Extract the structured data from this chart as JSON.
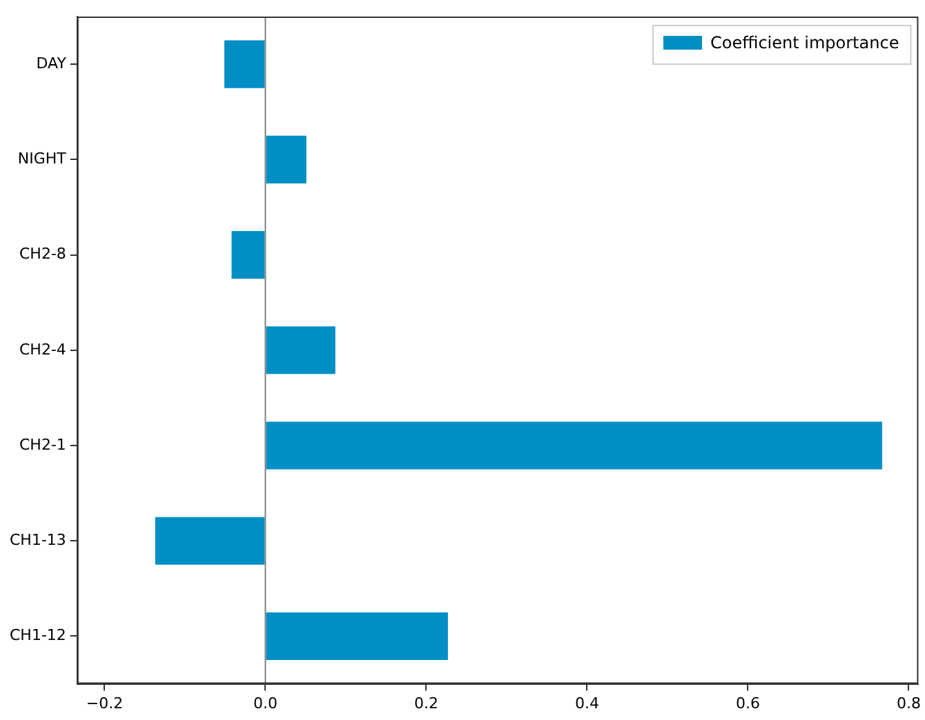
{
  "chart_data": {
    "type": "bar",
    "orientation": "horizontal",
    "categories": [
      "DAY",
      "NIGHT",
      "CH2-8",
      "CH2-4",
      "CH2-1",
      "CH1-13",
      "CH1-12"
    ],
    "series": [
      {
        "name": "Coefficient importance",
        "color": "#008fc5",
        "values": [
          -0.051,
          0.051,
          -0.042,
          0.087,
          0.767,
          -0.137,
          0.227
        ]
      }
    ],
    "xlim": [
      -0.234,
      0.812
    ],
    "xticks": [
      {
        "value": -0.2,
        "label": "−0.2"
      },
      {
        "value": 0,
        "label": "0.0"
      },
      {
        "value": 0.2,
        "label": "0.2"
      },
      {
        "value": 0.4,
        "label": "0.4"
      },
      {
        "value": 0.6,
        "label": "0.6"
      },
      {
        "value": 0.8,
        "label": "0.8"
      }
    ],
    "ref_lines": [
      {
        "axis": "x",
        "value": 0,
        "color": "#808080"
      }
    ],
    "grid": false,
    "legend": "top right"
  }
}
